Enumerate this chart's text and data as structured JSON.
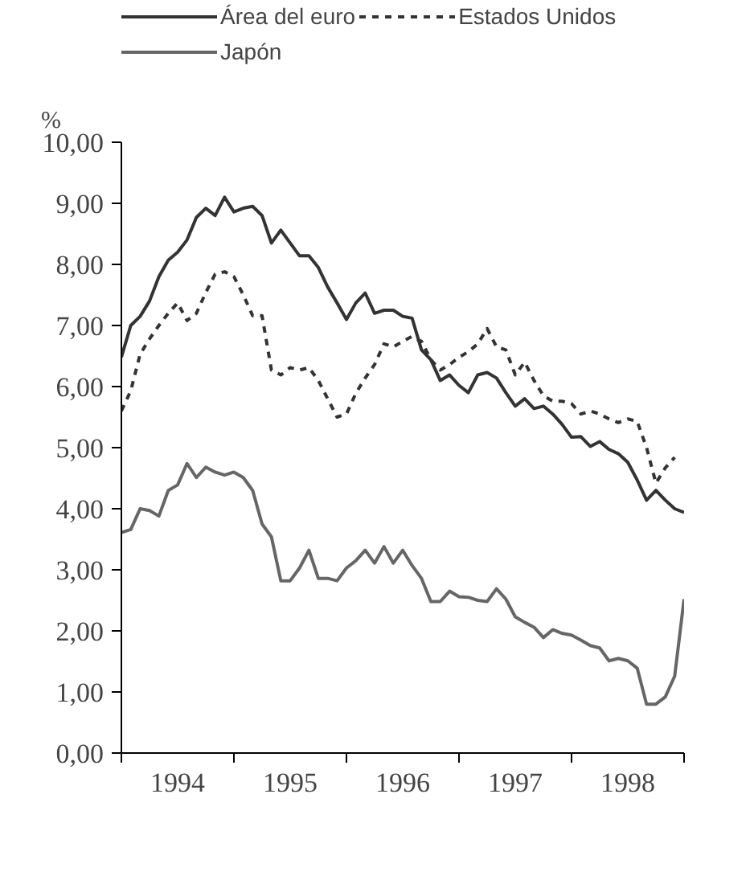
{
  "chart_data": {
    "type": "line",
    "ylabel": "%",
    "x": [
      1994.0,
      1994.0833,
      1994.1667,
      1994.25,
      1994.3333,
      1994.4167,
      1994.5,
      1994.5833,
      1994.6667,
      1994.75,
      1994.8333,
      1994.9167,
      1995.0,
      1995.0833,
      1995.1667,
      1995.25,
      1995.3333,
      1995.4167,
      1995.5,
      1995.5833,
      1995.6667,
      1995.75,
      1995.8333,
      1995.9167,
      1996.0,
      1996.0833,
      1996.1667,
      1996.25,
      1996.3333,
      1996.4167,
      1996.5,
      1996.5833,
      1996.6667,
      1996.75,
      1996.8333,
      1996.9167,
      1997.0,
      1997.0833,
      1997.1667,
      1997.25,
      1997.3333,
      1997.4167,
      1997.5,
      1997.5833,
      1997.6667,
      1997.75,
      1997.8333,
      1997.9167,
      1998.0,
      1998.0833,
      1998.1667,
      1998.25,
      1998.3333,
      1998.4167,
      1998.5,
      1998.5833,
      1998.6667,
      1998.75,
      1998.8333,
      1998.9167,
      1999.0
    ],
    "series": [
      {
        "name": "Área del euro",
        "color": "#333333",
        "line_style": "solid",
        "values": [
          6.48,
          7.0,
          7.15,
          7.4,
          7.8,
          8.07,
          8.2,
          8.4,
          8.77,
          8.92,
          8.8,
          9.1,
          8.86,
          8.92,
          8.95,
          8.8,
          8.35,
          8.56,
          8.35,
          8.14,
          8.14,
          7.95,
          7.63,
          7.37,
          7.1,
          7.37,
          7.53,
          7.2,
          7.25,
          7.25,
          7.15,
          7.12,
          6.6,
          6.44,
          6.1,
          6.19,
          6.02,
          5.9,
          6.19,
          6.23,
          6.14,
          5.9,
          5.68,
          5.8,
          5.64,
          5.68,
          5.55,
          5.38,
          5.17,
          5.18,
          5.02,
          5.1,
          4.97,
          4.9,
          4.76,
          4.47,
          4.14,
          4.3,
          4.14,
          4.0,
          3.94
        ]
      },
      {
        "name": "Estados Unidos",
        "color": "#333333",
        "line_style": "dashed",
        "values": [
          5.6,
          5.93,
          6.53,
          6.78,
          7.0,
          7.2,
          7.37,
          7.08,
          7.2,
          7.54,
          7.84,
          7.88,
          7.8,
          7.5,
          7.16,
          7.16,
          6.27,
          6.19,
          6.31,
          6.27,
          6.31,
          6.1,
          5.8,
          5.5,
          5.55,
          5.89,
          6.14,
          6.36,
          6.7,
          6.65,
          6.74,
          6.82,
          6.74,
          6.44,
          6.27,
          6.36,
          6.48,
          6.57,
          6.7,
          6.95,
          6.65,
          6.6,
          6.19,
          6.4,
          6.1,
          5.85,
          5.76,
          5.76,
          5.72,
          5.55,
          5.6,
          5.55,
          5.47,
          5.41,
          5.47,
          5.43,
          5.0,
          4.42,
          4.67,
          4.84,
          null
        ]
      },
      {
        "name": "Japón",
        "color": "#666666",
        "line_style": "solid",
        "values": [
          3.61,
          3.66,
          4.0,
          3.97,
          3.88,
          4.3,
          4.39,
          4.74,
          4.51,
          4.68,
          4.6,
          4.55,
          4.6,
          4.51,
          4.3,
          3.75,
          3.54,
          2.82,
          2.82,
          3.03,
          3.32,
          2.86,
          2.86,
          2.82,
          3.03,
          3.15,
          3.32,
          3.11,
          3.38,
          3.11,
          3.32,
          3.07,
          2.86,
          2.48,
          2.48,
          2.65,
          2.56,
          2.55,
          2.5,
          2.48,
          2.69,
          2.52,
          2.23,
          2.14,
          2.06,
          1.89,
          2.02,
          1.96,
          1.93,
          1.85,
          1.76,
          1.72,
          1.51,
          1.55,
          1.51,
          1.39,
          0.8,
          0.8,
          0.92,
          1.26,
          2.52
        ]
      }
    ],
    "xlim": [
      1994.0,
      1999.0
    ],
    "ylim": [
      0,
      10
    ],
    "xticks": [
      {
        "value": 1994,
        "label": null
      },
      {
        "value": 1994.5,
        "label": "1994"
      },
      {
        "value": 1995,
        "label": null
      },
      {
        "value": 1995.5,
        "label": "1995"
      },
      {
        "value": 1996,
        "label": null
      },
      {
        "value": 1996.5,
        "label": "1996"
      },
      {
        "value": 1997,
        "label": null
      },
      {
        "value": 1997.5,
        "label": "1997"
      },
      {
        "value": 1998,
        "label": null
      },
      {
        "value": 1998.5,
        "label": "1998"
      },
      {
        "value": 1999,
        "label": null
      }
    ],
    "yticks": [
      {
        "value": 0,
        "label": "0,00"
      },
      {
        "value": 1,
        "label": "1,00"
      },
      {
        "value": 2,
        "label": "2,00"
      },
      {
        "value": 3,
        "label": "3,00"
      },
      {
        "value": 4,
        "label": "4,00"
      },
      {
        "value": 5,
        "label": "5,00"
      },
      {
        "value": 6,
        "label": "6,00"
      },
      {
        "value": 7,
        "label": "7,00"
      },
      {
        "value": 8,
        "label": "8,00"
      },
      {
        "value": 9,
        "label": "9,00"
      },
      {
        "value": 10,
        "label": "10,00"
      }
    ],
    "grid": false,
    "legend": "top",
    "marker": "none"
  }
}
